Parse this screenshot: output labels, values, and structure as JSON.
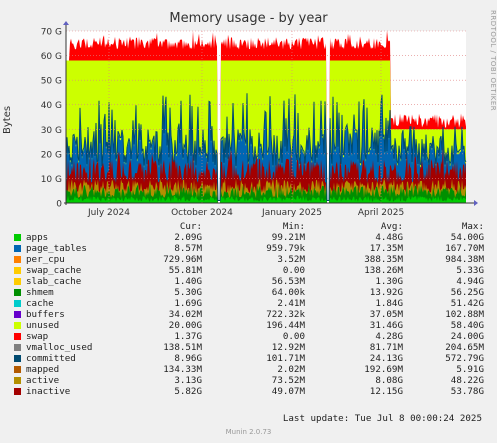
{
  "chart_data": {
    "type": "area",
    "title": "Memory usage - by year",
    "ylabel": "Bytes",
    "ylim": [
      0,
      70
    ],
    "y_unit": "G",
    "y_ticks": [
      "0",
      "10 G",
      "20 G",
      "30 G",
      "40 G",
      "50 G",
      "60 G",
      "70 G"
    ],
    "x_ticks": [
      "July 2024",
      "October 2024",
      "January 2025",
      "April 2025"
    ],
    "grid": true,
    "watermark": "RRDTOOL / TOBI OETIKER",
    "series": [
      {
        "name": "apps",
        "color": "#00cc00",
        "level": [
          1,
          6
        ]
      },
      {
        "name": "page_tables",
        "color": "#0066b3",
        "level": [
          0.008,
          0.01
        ]
      },
      {
        "name": "per_cpu",
        "color": "#ff8000",
        "level": [
          0.4,
          0.7
        ]
      },
      {
        "name": "swap_cache",
        "color": "#ffcc00",
        "level": [
          0,
          0.1
        ]
      },
      {
        "name": "slab_cache",
        "color": "#ffcc00",
        "level": [
          1.3,
          1.5
        ]
      },
      {
        "name": "shmem",
        "color": "#008f00",
        "level": [
          5,
          15
        ]
      },
      {
        "name": "cache",
        "color": "#00cccc",
        "level": [
          1.5,
          2
        ]
      },
      {
        "name": "buffers",
        "color": "#6600cc",
        "level": [
          0.03,
          0.05
        ]
      },
      {
        "name": "unused",
        "color": "#ccff00",
        "level": [
          20,
          40
        ]
      },
      {
        "name": "swap",
        "color": "#ff0000",
        "level": [
          0,
          20
        ]
      },
      {
        "name": "vmalloc_used",
        "color": "#808080",
        "level": [
          0.1,
          0.2
        ]
      },
      {
        "name": "committed",
        "color": "#004a70",
        "level": [
          10,
          45
        ]
      },
      {
        "name": "mapped",
        "color": "#b35a00",
        "level": [
          0.2,
          5
        ]
      },
      {
        "name": "active",
        "color": "#b38f00",
        "level": [
          3,
          20
        ]
      },
      {
        "name": "inactive",
        "color": "#a30000",
        "level": [
          6,
          18
        ]
      }
    ],
    "stack_top_before_april_2025": 64,
    "stack_top_after_april_2025": 32,
    "unused_top_before_april_2025": 58,
    "unused_top_after_april_2025": 30
  },
  "legend": {
    "headers": {
      "cur": "Cur:",
      "min": "Min:",
      "avg": "Avg:",
      "max": "Max:"
    },
    "rows": [
      {
        "name": "apps",
        "color": "#00cc00",
        "cur": "2.09G",
        "min": "99.21M",
        "avg": "4.48G",
        "max": "54.00G"
      },
      {
        "name": "page_tables",
        "color": "#0066b3",
        "cur": "8.57M",
        "min": "959.79k",
        "avg": "17.35M",
        "max": "167.70M"
      },
      {
        "name": "per_cpu",
        "color": "#ff8000",
        "cur": "729.96M",
        "min": "3.52M",
        "avg": "388.35M",
        "max": "984.38M"
      },
      {
        "name": "swap_cache",
        "color": "#ffcc00",
        "cur": "55.81M",
        "min": "0.00",
        "avg": "138.26M",
        "max": "5.33G"
      },
      {
        "name": "slab_cache",
        "color": "#ffcc00",
        "cur": "1.40G",
        "min": "56.53M",
        "avg": "1.30G",
        "max": "4.94G"
      },
      {
        "name": "shmem",
        "color": "#008f00",
        "cur": "5.30G",
        "min": "64.00k",
        "avg": "13.92G",
        "max": "56.25G"
      },
      {
        "name": "cache",
        "color": "#00cccc",
        "cur": "1.69G",
        "min": "2.41M",
        "avg": "1.84G",
        "max": "51.42G"
      },
      {
        "name": "buffers",
        "color": "#6600cc",
        "cur": "34.02M",
        "min": "722.32k",
        "avg": "37.05M",
        "max": "102.88M"
      },
      {
        "name": "unused",
        "color": "#ccff00",
        "cur": "20.00G",
        "min": "196.44M",
        "avg": "31.46G",
        "max": "58.40G"
      },
      {
        "name": "swap",
        "color": "#ff0000",
        "cur": "1.37G",
        "min": "0.00",
        "avg": "4.28G",
        "max": "24.00G"
      },
      {
        "name": "vmalloc_used",
        "color": "#808080",
        "cur": "138.51M",
        "min": "12.92M",
        "avg": "81.71M",
        "max": "204.65M"
      },
      {
        "name": "committed",
        "color": "#004a70",
        "cur": "8.96G",
        "min": "101.71M",
        "avg": "24.13G",
        "max": "572.79G"
      },
      {
        "name": "mapped",
        "color": "#b35a00",
        "cur": "134.33M",
        "min": "2.02M",
        "avg": "192.69M",
        "max": "5.91G"
      },
      {
        "name": "active",
        "color": "#b38f00",
        "cur": "3.13G",
        "min": "73.52M",
        "avg": "8.08G",
        "max": "48.22G"
      },
      {
        "name": "inactive",
        "color": "#a30000",
        "cur": "5.82G",
        "min": "49.07M",
        "avg": "12.15G",
        "max": "53.78G"
      }
    ]
  },
  "footer": {
    "last_update": "Last update: Tue Jul  8 00:00:24 2025",
    "munin": "Munin 2.0.73"
  }
}
